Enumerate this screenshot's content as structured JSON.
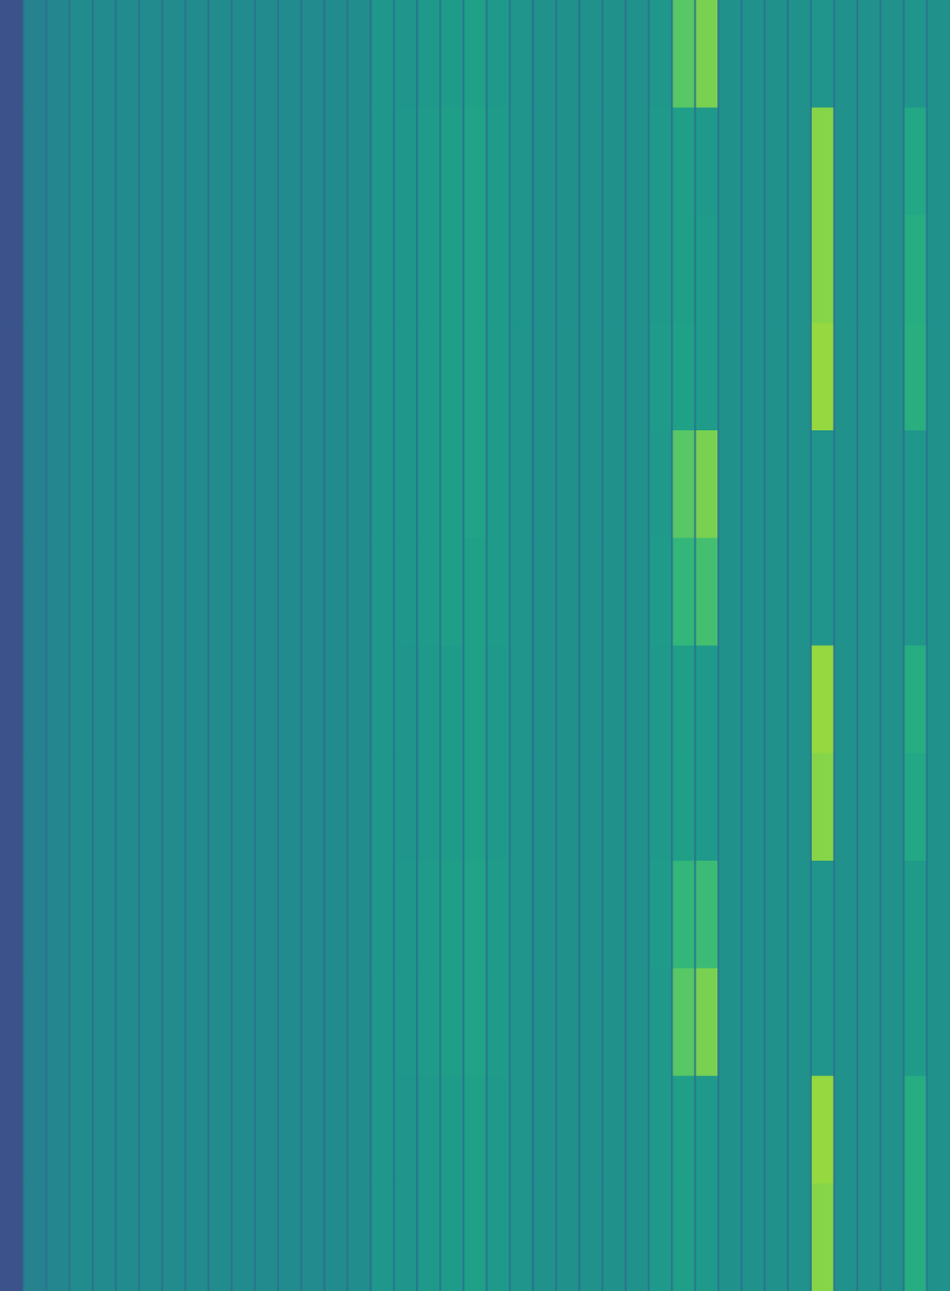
{
  "chart_data": {
    "type": "heatmap",
    "tick_labels": false,
    "color_range": [
      0,
      1
    ],
    "cells": [
      [
        0.25,
        0.44,
        0.46,
        0.48,
        0.48,
        0.48,
        0.48,
        0.48,
        0.48,
        0.48,
        0.48,
        0.48,
        0.48,
        0.48,
        0.48,
        0.49,
        0.53,
        0.52,
        0.54,
        0.55,
        0.57,
        0.54,
        0.52,
        0.5,
        0.5,
        0.5,
        0.5,
        0.5,
        0.53,
        0.74,
        0.8,
        0.5,
        0.5,
        0.5,
        0.5,
        0.52,
        0.5,
        0.5,
        0.5,
        0.52,
        0.5
      ],
      [
        0.25,
        0.44,
        0.46,
        0.48,
        0.48,
        0.48,
        0.48,
        0.48,
        0.48,
        0.48,
        0.48,
        0.48,
        0.48,
        0.48,
        0.48,
        0.49,
        0.53,
        0.53,
        0.55,
        0.56,
        0.58,
        0.55,
        0.52,
        0.5,
        0.5,
        0.5,
        0.5,
        0.5,
        0.54,
        0.56,
        0.54,
        0.5,
        0.5,
        0.5,
        0.5,
        0.82,
        0.5,
        0.5,
        0.5,
        0.6,
        0.5
      ],
      [
        0.25,
        0.44,
        0.46,
        0.48,
        0.48,
        0.48,
        0.48,
        0.48,
        0.48,
        0.48,
        0.48,
        0.48,
        0.48,
        0.48,
        0.48,
        0.49,
        0.53,
        0.53,
        0.55,
        0.56,
        0.58,
        0.55,
        0.52,
        0.5,
        0.5,
        0.5,
        0.5,
        0.5,
        0.54,
        0.56,
        0.55,
        0.5,
        0.5,
        0.5,
        0.5,
        0.82,
        0.5,
        0.5,
        0.5,
        0.62,
        0.5
      ],
      [
        0.25,
        0.44,
        0.46,
        0.48,
        0.48,
        0.48,
        0.48,
        0.48,
        0.48,
        0.48,
        0.48,
        0.48,
        0.48,
        0.48,
        0.48,
        0.49,
        0.53,
        0.53,
        0.55,
        0.56,
        0.58,
        0.55,
        0.52,
        0.5,
        0.5,
        0.5,
        0.5,
        0.5,
        0.55,
        0.57,
        0.55,
        0.5,
        0.5,
        0.5,
        0.5,
        0.84,
        0.5,
        0.5,
        0.5,
        0.63,
        0.5
      ],
      [
        0.25,
        0.44,
        0.46,
        0.48,
        0.48,
        0.48,
        0.48,
        0.48,
        0.48,
        0.48,
        0.48,
        0.48,
        0.48,
        0.48,
        0.48,
        0.49,
        0.53,
        0.53,
        0.55,
        0.56,
        0.58,
        0.55,
        0.52,
        0.5,
        0.5,
        0.5,
        0.5,
        0.5,
        0.54,
        0.74,
        0.8,
        0.5,
        0.5,
        0.5,
        0.5,
        0.52,
        0.5,
        0.5,
        0.5,
        0.53,
        0.5
      ],
      [
        0.25,
        0.44,
        0.46,
        0.48,
        0.48,
        0.48,
        0.48,
        0.48,
        0.48,
        0.48,
        0.48,
        0.48,
        0.48,
        0.48,
        0.48,
        0.49,
        0.53,
        0.53,
        0.55,
        0.56,
        0.57,
        0.55,
        0.52,
        0.5,
        0.5,
        0.5,
        0.5,
        0.5,
        0.55,
        0.66,
        0.7,
        0.5,
        0.5,
        0.5,
        0.5,
        0.52,
        0.5,
        0.5,
        0.5,
        0.53,
        0.5
      ],
      [
        0.25,
        0.44,
        0.46,
        0.48,
        0.48,
        0.48,
        0.48,
        0.48,
        0.48,
        0.48,
        0.48,
        0.48,
        0.48,
        0.48,
        0.48,
        0.49,
        0.53,
        0.52,
        0.54,
        0.55,
        0.57,
        0.54,
        0.52,
        0.5,
        0.5,
        0.5,
        0.5,
        0.5,
        0.54,
        0.56,
        0.54,
        0.5,
        0.5,
        0.5,
        0.5,
        0.84,
        0.5,
        0.5,
        0.5,
        0.62,
        0.5
      ],
      [
        0.25,
        0.44,
        0.46,
        0.48,
        0.48,
        0.48,
        0.48,
        0.48,
        0.48,
        0.48,
        0.48,
        0.48,
        0.48,
        0.48,
        0.48,
        0.49,
        0.53,
        0.52,
        0.54,
        0.55,
        0.57,
        0.54,
        0.52,
        0.5,
        0.5,
        0.5,
        0.5,
        0.5,
        0.54,
        0.56,
        0.54,
        0.5,
        0.5,
        0.5,
        0.5,
        0.82,
        0.5,
        0.5,
        0.5,
        0.6,
        0.5
      ],
      [
        0.25,
        0.44,
        0.46,
        0.48,
        0.48,
        0.48,
        0.48,
        0.48,
        0.48,
        0.48,
        0.48,
        0.48,
        0.48,
        0.48,
        0.48,
        0.49,
        0.53,
        0.53,
        0.55,
        0.56,
        0.58,
        0.55,
        0.52,
        0.5,
        0.5,
        0.5,
        0.5,
        0.5,
        0.55,
        0.66,
        0.68,
        0.5,
        0.5,
        0.5,
        0.5,
        0.52,
        0.5,
        0.5,
        0.5,
        0.55,
        0.5
      ],
      [
        0.25,
        0.44,
        0.46,
        0.48,
        0.48,
        0.48,
        0.48,
        0.48,
        0.48,
        0.48,
        0.48,
        0.48,
        0.48,
        0.48,
        0.48,
        0.49,
        0.53,
        0.53,
        0.55,
        0.56,
        0.58,
        0.55,
        0.52,
        0.5,
        0.5,
        0.5,
        0.5,
        0.5,
        0.54,
        0.74,
        0.8,
        0.5,
        0.5,
        0.5,
        0.5,
        0.52,
        0.5,
        0.5,
        0.5,
        0.55,
        0.5
      ],
      [
        0.25,
        0.44,
        0.46,
        0.48,
        0.48,
        0.48,
        0.48,
        0.48,
        0.48,
        0.48,
        0.48,
        0.48,
        0.48,
        0.48,
        0.48,
        0.49,
        0.53,
        0.52,
        0.54,
        0.55,
        0.57,
        0.54,
        0.52,
        0.5,
        0.5,
        0.5,
        0.5,
        0.5,
        0.54,
        0.56,
        0.54,
        0.5,
        0.5,
        0.5,
        0.5,
        0.84,
        0.5,
        0.5,
        0.5,
        0.62,
        0.5
      ],
      [
        0.25,
        0.44,
        0.46,
        0.48,
        0.48,
        0.48,
        0.48,
        0.48,
        0.48,
        0.48,
        0.48,
        0.48,
        0.48,
        0.48,
        0.48,
        0.49,
        0.53,
        0.52,
        0.54,
        0.55,
        0.57,
        0.54,
        0.52,
        0.5,
        0.5,
        0.5,
        0.5,
        0.5,
        0.54,
        0.56,
        0.54,
        0.5,
        0.5,
        0.5,
        0.5,
        0.82,
        0.5,
        0.5,
        0.5,
        0.62,
        0.5
      ]
    ]
  }
}
